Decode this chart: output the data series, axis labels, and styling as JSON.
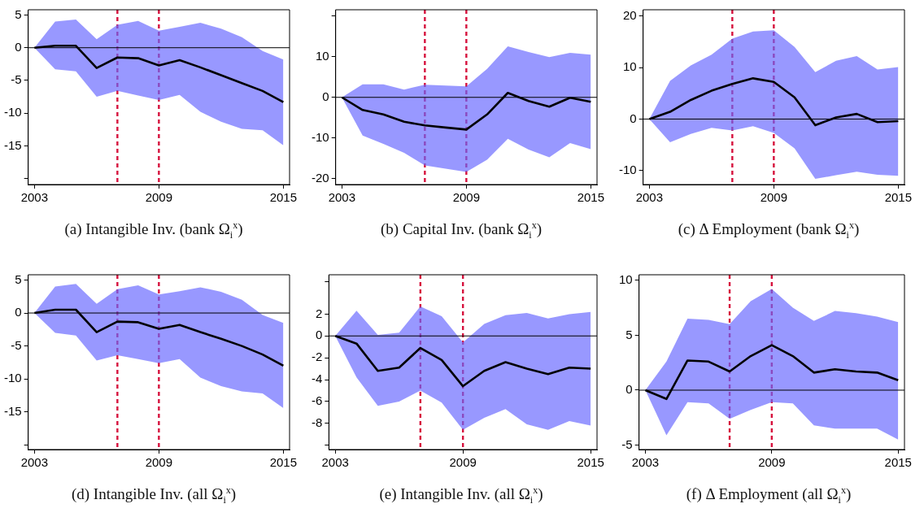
{
  "chart_data": [
    {
      "type": "line",
      "title": "(a)  Intangible Inv. (bank Ω$_{i}$$^{x}$)",
      "x": [
        2003,
        2004,
        2005,
        2006,
        2007,
        2008,
        2009,
        2010,
        2011,
        2012,
        2013,
        2014,
        2015
      ],
      "xlim": [
        2002.7,
        2015.3
      ],
      "xticks": [
        2003,
        2009,
        2015
      ],
      "ylim": [
        -20.9,
        5.8
      ],
      "yticks": [
        5,
        0,
        -5,
        -10,
        -15,
        {
          "value": -20,
          "label": null
        }
      ],
      "series": [
        {
          "color": "#000000",
          "values": [
            0,
            0.3,
            0.3,
            -3.1,
            -1.5,
            -1.6,
            -2.7,
            -1.9,
            -3.0,
            -4.2,
            -5.4,
            -6.6,
            -8.3
          ],
          "upper": [
            0,
            4.0,
            4.3,
            1.3,
            3.5,
            4.1,
            2.6,
            3.2,
            3.8,
            2.9,
            1.6,
            -0.5,
            -1.8
          ],
          "lower": [
            0,
            -3.3,
            -3.6,
            -7.5,
            -6.6,
            -7.3,
            -8.0,
            -7.2,
            -9.8,
            -11.3,
            -12.4,
            -12.6,
            -14.9
          ]
        }
      ],
      "ref_lines": [
        {
          "axis": "x",
          "value": 2007,
          "color": "#d6103c",
          "line_style": "dashed"
        },
        {
          "axis": "x",
          "value": 2009,
          "color": "#d6103c",
          "line_style": "dashed"
        },
        {
          "axis": "y",
          "value": 0,
          "color": "#000000",
          "line_style": "solid"
        }
      ]
    },
    {
      "type": "line",
      "title": "(b)  Capital Inv. (bank Ω$_{i}$$^{x}$)",
      "x": [
        2003,
        2004,
        2005,
        2006,
        2007,
        2008,
        2009,
        2010,
        2011,
        2012,
        2013,
        2014,
        2015
      ],
      "xlim": [
        2002.7,
        2015.3
      ],
      "xticks": [
        2003,
        2009,
        2015
      ],
      "ylim": [
        -21.4,
        21.5
      ],
      "yticks": [
        {
          "value": 20,
          "label": null
        },
        10,
        0,
        -10,
        -20
      ],
      "series": [
        {
          "color": "#000000",
          "values": [
            0,
            -3.1,
            -4.2,
            -6.0,
            -6.9,
            -7.4,
            -7.9,
            -4.2,
            1.1,
            -0.9,
            -2.3,
            -0.1,
            -1.1
          ],
          "upper": [
            0,
            3.2,
            3.2,
            1.9,
            3.1,
            2.9,
            2.7,
            7.0,
            12.5,
            11.1,
            9.9,
            10.9,
            10.5
          ],
          "lower": [
            0,
            -9.4,
            -11.4,
            -13.6,
            -16.7,
            -17.5,
            -18.3,
            -15.3,
            -10.2,
            -12.8,
            -14.7,
            -11.2,
            -12.7
          ]
        }
      ],
      "ref_lines": [
        {
          "axis": "x",
          "value": 2007,
          "color": "#d6103c",
          "line_style": "dashed"
        },
        {
          "axis": "x",
          "value": 2009,
          "color": "#d6103c",
          "line_style": "dashed"
        },
        {
          "axis": "y",
          "value": 0,
          "color": "#000000",
          "line_style": "solid"
        }
      ]
    },
    {
      "type": "line",
      "title": "(c)  Δ Employment (bank Ω$_{i}$$^{x}$)",
      "x": [
        2003,
        2004,
        2005,
        2006,
        2007,
        2008,
        2009,
        2010,
        2011,
        2012,
        2013,
        2014,
        2015
      ],
      "xlim": [
        2002.7,
        2015.3
      ],
      "xticks": [
        2003,
        2009,
        2015
      ],
      "ylim": [
        -12.7,
        21.2
      ],
      "yticks": [
        20,
        10,
        0,
        -10
      ],
      "series": [
        {
          "color": "#000000",
          "values": [
            0,
            1.4,
            3.7,
            5.5,
            6.8,
            7.9,
            7.2,
            4.2,
            -1.2,
            0.3,
            1.0,
            -0.6,
            -0.4
          ],
          "upper": [
            0,
            7.4,
            10.4,
            12.5,
            15.6,
            17.0,
            17.2,
            14.0,
            9.1,
            11.3,
            12.2,
            9.6,
            10.1
          ],
          "lower": [
            0,
            -4.5,
            -2.9,
            -1.7,
            -2.2,
            -1.4,
            -2.7,
            -5.7,
            -11.6,
            -10.9,
            -10.2,
            -10.8,
            -11.0
          ]
        }
      ],
      "ref_lines": [
        {
          "axis": "x",
          "value": 2007,
          "color": "#d6103c",
          "line_style": "dashed"
        },
        {
          "axis": "x",
          "value": 2009,
          "color": "#d6103c",
          "line_style": "dashed"
        },
        {
          "axis": "y",
          "value": 0,
          "color": "#000000",
          "line_style": "solid"
        }
      ]
    },
    {
      "type": "line",
      "title": "(d)  Intangible Inv. (all Ω$_{i}$$^{x}$)",
      "x": [
        2003,
        2004,
        2005,
        2006,
        2007,
        2008,
        2009,
        2010,
        2011,
        2012,
        2013,
        2014,
        2015
      ],
      "xlim": [
        2002.7,
        2015.3
      ],
      "xticks": [
        2003,
        2009,
        2015
      ],
      "ylim": [
        -20.7,
        5.8
      ],
      "yticks": [
        5,
        0,
        -5,
        -10,
        -15,
        {
          "value": -20,
          "label": null
        }
      ],
      "series": [
        {
          "color": "#000000",
          "values": [
            0,
            0.5,
            0.5,
            -2.9,
            -1.3,
            -1.4,
            -2.4,
            -1.8,
            -2.9,
            -3.9,
            -5.0,
            -6.3,
            -8.0
          ],
          "upper": [
            0,
            4.0,
            4.4,
            1.4,
            3.6,
            4.2,
            2.8,
            3.3,
            3.9,
            3.2,
            2.0,
            -0.3,
            -1.5
          ],
          "lower": [
            0,
            -3.0,
            -3.4,
            -7.2,
            -6.4,
            -7.0,
            -7.6,
            -7.0,
            -9.8,
            -11.1,
            -11.9,
            -12.2,
            -14.4
          ]
        }
      ],
      "ref_lines": [
        {
          "axis": "x",
          "value": 2007,
          "color": "#d6103c",
          "line_style": "dashed"
        },
        {
          "axis": "x",
          "value": 2009,
          "color": "#d6103c",
          "line_style": "dashed"
        },
        {
          "axis": "y",
          "value": 0,
          "color": "#000000",
          "line_style": "solid"
        }
      ]
    },
    {
      "type": "line",
      "title": "(e)  Intangible Inv. (all Ω$_{i}$$^{x}$)",
      "x": [
        2003,
        2004,
        2005,
        2006,
        2007,
        2008,
        2009,
        2010,
        2011,
        2012,
        2013,
        2014,
        2015
      ],
      "xlim": [
        2002.7,
        2015.3
      ],
      "xticks": [
        2003,
        2009,
        2015
      ],
      "ylim": [
        -10.4,
        5.6
      ],
      "yticks": [
        {
          "value": 5,
          "label": null
        },
        2,
        0,
        -2,
        -4,
        -6,
        -8,
        {
          "value": -10,
          "label": null
        }
      ],
      "series": [
        {
          "color": "#000000",
          "values": [
            0,
            -0.7,
            -3.2,
            -2.9,
            -1.1,
            -2.2,
            -4.6,
            -3.2,
            -2.4,
            -3.0,
            -3.5,
            -2.9,
            -3.0
          ],
          "upper": [
            0,
            2.3,
            0.1,
            0.3,
            2.7,
            1.8,
            -0.6,
            1.1,
            1.9,
            2.1,
            1.6,
            2.0,
            2.2
          ],
          "lower": [
            0,
            -3.8,
            -6.4,
            -6.0,
            -5.0,
            -6.1,
            -8.6,
            -7.5,
            -6.7,
            -8.1,
            -8.6,
            -7.8,
            -8.2
          ]
        }
      ],
      "ref_lines": [
        {
          "axis": "x",
          "value": 2007,
          "color": "#d6103c",
          "line_style": "dashed"
        },
        {
          "axis": "x",
          "value": 2009,
          "color": "#d6103c",
          "line_style": "dashed"
        },
        {
          "axis": "y",
          "value": 0,
          "color": "#000000",
          "line_style": "solid"
        }
      ]
    },
    {
      "type": "line",
      "title": "(f)  Δ Employment (all Ω$_{i}$$^{x}$)",
      "x": [
        2003,
        2004,
        2005,
        2006,
        2007,
        2008,
        2009,
        2010,
        2011,
        2012,
        2013,
        2014,
        2015
      ],
      "xlim": [
        2002.7,
        2015.3
      ],
      "xticks": [
        2003,
        2009,
        2015
      ],
      "ylim": [
        -5.4,
        10.5
      ],
      "yticks": [
        10,
        5,
        0,
        -5
      ],
      "series": [
        {
          "color": "#000000",
          "values": [
            0,
            -0.8,
            2.7,
            2.6,
            1.7,
            3.1,
            4.1,
            3.1,
            1.6,
            1.9,
            1.7,
            1.6,
            0.9
          ],
          "upper": [
            0,
            2.6,
            6.5,
            6.4,
            6.0,
            8.1,
            9.2,
            7.5,
            6.3,
            7.2,
            7.0,
            6.7,
            6.2
          ],
          "lower": [
            0,
            -4.1,
            -1.1,
            -1.2,
            -2.6,
            -1.8,
            -1.1,
            -1.2,
            -3.2,
            -3.5,
            -3.5,
            -3.5,
            -4.5
          ]
        }
      ],
      "ref_lines": [
        {
          "axis": "x",
          "value": 2007,
          "color": "#d6103c",
          "line_style": "dashed"
        },
        {
          "axis": "x",
          "value": 2009,
          "color": "#d6103c",
          "line_style": "dashed"
        },
        {
          "axis": "y",
          "value": 0,
          "color": "#000000",
          "line_style": "solid"
        }
      ]
    }
  ]
}
